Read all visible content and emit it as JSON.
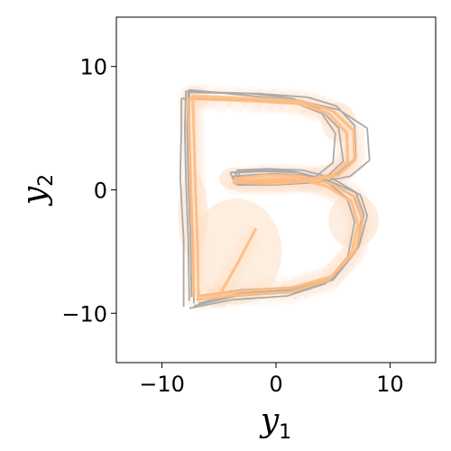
{
  "chart_data": {
    "type": "line",
    "xlabel": "y",
    "xlabel_sub": "1",
    "ylabel": "y",
    "ylabel_sub": "2",
    "xlim": [
      -14,
      14
    ],
    "ylim": [
      -14,
      14
    ],
    "xticks": [
      -10,
      0,
      10
    ],
    "yticks": [
      -10,
      0,
      10
    ],
    "xtick_labels": [
      "−10",
      "0",
      "10"
    ],
    "ytick_labels": [
      "−10",
      "0",
      "10"
    ],
    "grid": false,
    "legend": "none",
    "colors": {
      "reference": "#aaaaaa",
      "prediction": "#ffbb80",
      "uncertainty": "#fde0c5"
    },
    "series": [
      {
        "role": "reference",
        "values": [
          [
            -7.6,
            -9.0
          ],
          [
            -7.7,
            -4.0
          ],
          [
            -7.9,
            1.0
          ],
          [
            -8.0,
            5.0
          ],
          [
            -7.9,
            8.0
          ],
          [
            -2.0,
            7.8
          ],
          [
            1.5,
            7.4
          ],
          [
            3.8,
            6.6
          ],
          [
            5.5,
            5.0
          ],
          [
            5.9,
            2.3
          ],
          [
            4.6,
            1.2
          ],
          [
            2.0,
            0.7
          ],
          [
            -1.0,
            0.6
          ],
          [
            -3.2,
            0.6
          ],
          [
            -3.6,
            1.4
          ],
          [
            -1.0,
            1.5
          ],
          [
            2.0,
            1.4
          ],
          [
            4.5,
            0.8
          ],
          [
            6.8,
            -0.5
          ],
          [
            7.5,
            -2.3
          ],
          [
            7.0,
            -5.0
          ],
          [
            5.0,
            -7.3
          ],
          [
            1.5,
            -8.3
          ],
          [
            -3.5,
            -8.6
          ],
          [
            -7.2,
            -9.4
          ]
        ]
      },
      {
        "role": "reference",
        "values": [
          [
            -7.2,
            -9.2
          ],
          [
            -7.3,
            -4.0
          ],
          [
            -7.5,
            1.0
          ],
          [
            -7.6,
            5.0
          ],
          [
            -7.6,
            8.1
          ],
          [
            -2.0,
            7.6
          ],
          [
            2.2,
            7.2
          ],
          [
            5.5,
            6.5
          ],
          [
            8.0,
            5.0
          ],
          [
            8.2,
            2.4
          ],
          [
            6.5,
            1.1
          ],
          [
            3.5,
            0.6
          ],
          [
            0.0,
            0.4
          ],
          [
            -3.4,
            0.4
          ],
          [
            -3.8,
            1.1
          ],
          [
            -0.5,
            1.3
          ],
          [
            2.5,
            1.2
          ],
          [
            5.0,
            0.6
          ],
          [
            7.4,
            -0.4
          ],
          [
            8.0,
            -2.1
          ],
          [
            7.3,
            -4.5
          ],
          [
            5.0,
            -7.2
          ],
          [
            1.5,
            -8.1
          ],
          [
            -3.3,
            -8.4
          ],
          [
            -6.8,
            -9.2
          ]
        ]
      },
      {
        "role": "reference",
        "values": [
          [
            -8.1,
            -9.5
          ],
          [
            -8.1,
            -4.0
          ],
          [
            -8.4,
            1.0
          ],
          [
            -8.3,
            5.0
          ],
          [
            -8.3,
            7.4
          ],
          [
            -2.5,
            7.3
          ],
          [
            1.8,
            7.0
          ],
          [
            4.0,
            6.2
          ],
          [
            5.2,
            4.6
          ],
          [
            5.0,
            2.2
          ],
          [
            3.5,
            1.1
          ],
          [
            1.0,
            0.7
          ],
          [
            -1.5,
            0.5
          ],
          [
            -3.6,
            0.5
          ],
          [
            -4.0,
            1.4
          ],
          [
            -1.5,
            1.6
          ],
          [
            1.5,
            1.5
          ],
          [
            4.0,
            0.9
          ],
          [
            6.2,
            -0.6
          ],
          [
            6.9,
            -2.6
          ],
          [
            6.3,
            -5.4
          ],
          [
            4.3,
            -7.6
          ],
          [
            1.0,
            -8.6
          ],
          [
            -3.8,
            -8.9
          ],
          [
            -7.6,
            -9.6
          ]
        ]
      },
      {
        "role": "reference",
        "values": [
          [
            -7.4,
            -8.7
          ],
          [
            -7.5,
            -4.0
          ],
          [
            -7.7,
            1.0
          ],
          [
            -7.8,
            5.0
          ],
          [
            -7.7,
            7.9
          ],
          [
            -1.5,
            7.8
          ],
          [
            2.8,
            7.5
          ],
          [
            5.3,
            6.8
          ],
          [
            6.9,
            5.2
          ],
          [
            7.0,
            2.6
          ],
          [
            5.4,
            1.3
          ],
          [
            2.6,
            0.8
          ],
          [
            -0.6,
            0.7
          ],
          [
            -3.0,
            0.7
          ],
          [
            -3.4,
            1.6
          ],
          [
            -0.8,
            1.7
          ],
          [
            2.3,
            1.6
          ],
          [
            4.8,
            1.0
          ],
          [
            7.0,
            -0.2
          ],
          [
            7.7,
            -2.0
          ],
          [
            7.2,
            -4.7
          ],
          [
            5.2,
            -7.0
          ],
          [
            2.0,
            -7.9
          ],
          [
            -3.0,
            -8.1
          ],
          [
            -6.9,
            -8.6
          ]
        ]
      },
      {
        "role": "prediction",
        "values": [
          [
            -7.2,
            -8.6
          ],
          [
            -7.3,
            -4.0
          ],
          [
            -7.5,
            1.0
          ],
          [
            -7.6,
            4.5
          ],
          [
            -7.7,
            7.4
          ],
          [
            -2.0,
            7.2
          ],
          [
            2.0,
            7.0
          ],
          [
            4.6,
            6.2
          ],
          [
            6.2,
            4.6
          ],
          [
            6.3,
            2.3
          ],
          [
            5.0,
            1.2
          ],
          [
            2.4,
            0.8
          ],
          [
            -0.5,
            0.7
          ],
          [
            -3.7,
            0.8
          ]
        ]
      },
      {
        "role": "prediction",
        "values": [
          [
            -6.8,
            -8.9
          ],
          [
            -6.9,
            -4.0
          ],
          [
            -7.1,
            1.0
          ],
          [
            -7.2,
            4.5
          ],
          [
            -7.3,
            7.6
          ],
          [
            -2.0,
            7.4
          ],
          [
            2.2,
            7.2
          ],
          [
            5.0,
            6.4
          ],
          [
            6.8,
            4.8
          ],
          [
            6.9,
            2.4
          ],
          [
            5.5,
            1.2
          ],
          [
            2.8,
            0.7
          ],
          [
            -0.2,
            0.5
          ],
          [
            -3.5,
            0.6
          ]
        ]
      },
      {
        "role": "prediction",
        "values": [
          [
            -3.5,
            0.9
          ],
          [
            -0.8,
            1.2
          ],
          [
            2.2,
            1.1
          ],
          [
            4.8,
            0.5
          ],
          [
            7.0,
            -0.6
          ],
          [
            7.6,
            -2.5
          ],
          [
            7.0,
            -4.9
          ],
          [
            4.9,
            -7.0
          ],
          [
            1.5,
            -7.9
          ],
          [
            -3.0,
            -8.2
          ],
          [
            -6.6,
            -8.6
          ]
        ]
      },
      {
        "role": "prediction",
        "values": [
          [
            -3.7,
            0.6
          ],
          [
            -1.0,
            0.9
          ],
          [
            2.0,
            0.9
          ],
          [
            4.4,
            0.3
          ],
          [
            6.6,
            -0.9
          ],
          [
            7.2,
            -2.8
          ],
          [
            6.6,
            -5.2
          ],
          [
            4.6,
            -7.3
          ],
          [
            1.2,
            -8.3
          ],
          [
            -3.3,
            -8.5
          ],
          [
            -6.9,
            -8.9
          ]
        ]
      },
      {
        "role": "prediction",
        "values": [
          [
            -5.0,
            -8.6
          ],
          [
            -3.4,
            -6.0
          ],
          [
            -1.8,
            -3.2
          ]
        ]
      }
    ],
    "uncertainty_ellipses": [
      {
        "center": [
          -7.0,
          7.5
        ],
        "rx": 1.2,
        "ry": 0.9
      },
      {
        "center": [
          -3.8,
          0.9
        ],
        "rx": 1.2,
        "ry": 0.9
      },
      {
        "center": [
          5.5,
          5.5
        ],
        "rx": 1.5,
        "ry": 1.6
      },
      {
        "center": [
          6.8,
          -2.5
        ],
        "rx": 2.2,
        "ry": 2.2
      },
      {
        "center": [
          -7.3,
          -2.0
        ],
        "rx": 1.3,
        "ry": 3.5
      },
      {
        "center": [
          -3.5,
          -5.0
        ],
        "rx": 4.0,
        "ry": 4.3
      },
      {
        "center": [
          -5.1,
          -8.7
        ],
        "rx": 1.1,
        "ry": 0.8
      }
    ]
  }
}
